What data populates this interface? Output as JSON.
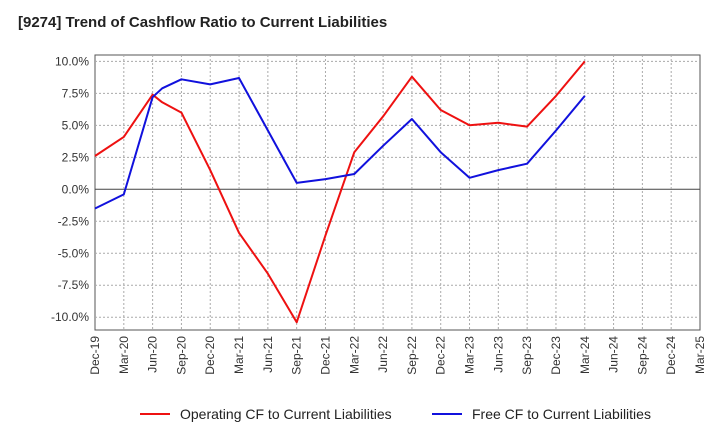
{
  "chart_data": {
    "type": "line",
    "title": "[9274]  Trend of Cashflow Ratio to Current Liabilities",
    "xlabel": "",
    "ylabel": "",
    "categories": [
      "Dec-19",
      "Mar-20",
      "Jun-20",
      "Sep-20",
      "Dec-20",
      "Mar-21",
      "Jun-21",
      "Sep-21",
      "Dec-21",
      "Mar-22",
      "Jun-22",
      "Sep-22",
      "Dec-22",
      "Mar-23",
      "Jun-23",
      "Sep-23",
      "Dec-23",
      "Mar-24",
      "Jun-24",
      "Sep-24",
      "Dec-24",
      "Mar-25"
    ],
    "x_ticks": [
      "Dec-19",
      "Mar-20",
      "Jun-20",
      "Sep-20",
      "Dec-20",
      "Mar-21",
      "Jun-21",
      "Sep-21",
      "Dec-21",
      "Mar-22",
      "Jun-22",
      "Sep-22",
      "Dec-22",
      "Mar-23",
      "Jun-23",
      "Sep-23",
      "Dec-23",
      "Mar-24",
      "Jun-24",
      "Sep-24",
      "Dec-24",
      "Mar-25"
    ],
    "ylim": [
      -11.0,
      10.5
    ],
    "y_ticks": [
      10.0,
      7.5,
      5.0,
      2.5,
      0.0,
      -2.5,
      -5.0,
      -7.5,
      -10.0
    ],
    "y_tick_labels": [
      "10.0%",
      "7.5%",
      "5.0%",
      "2.5%",
      "0.0%",
      "-2.5%",
      "-5.0%",
      "-7.5%",
      "-10.0%"
    ],
    "grid": true,
    "legend_position": "bottom",
    "series": [
      {
        "name": "Operating CF to Current Liabilities",
        "color": "#ee1111",
        "x": [
          "Dec-19",
          "Mar-20",
          "Jun-20",
          "Jul-20",
          "Sep-20",
          "Dec-20",
          "Mar-21",
          "Jun-21",
          "Sep-21",
          "Dec-21",
          "Mar-22",
          "Jun-22",
          "Sep-22",
          "Dec-22",
          "Mar-23",
          "Jun-23",
          "Sep-23",
          "Dec-23",
          "Mar-24"
        ],
        "values": [
          2.6,
          4.1,
          7.4,
          6.8,
          6.0,
          1.5,
          -3.4,
          -6.6,
          -10.4,
          -3.6,
          2.9,
          5.7,
          8.8,
          6.2,
          5.0,
          5.2,
          4.9,
          7.3,
          10.0
        ]
      },
      {
        "name": "Free CF to Current Liabilities",
        "color": "#1111dd",
        "x": [
          "Dec-19",
          "Mar-20",
          "Jun-20",
          "Jul-20",
          "Sep-20",
          "Dec-20",
          "Mar-21",
          "Jun-21",
          "Sep-21",
          "Dec-21",
          "Mar-22",
          "Jun-22",
          "Sep-22",
          "Dec-22",
          "Mar-23",
          "Jun-23",
          "Sep-23",
          "Dec-23",
          "Mar-24"
        ],
        "values": [
          -1.5,
          -0.4,
          7.2,
          7.9,
          8.6,
          8.2,
          8.7,
          4.6,
          0.5,
          0.8,
          1.2,
          3.4,
          5.5,
          2.9,
          0.9,
          1.5,
          2.0,
          4.6,
          7.3
        ]
      }
    ]
  }
}
